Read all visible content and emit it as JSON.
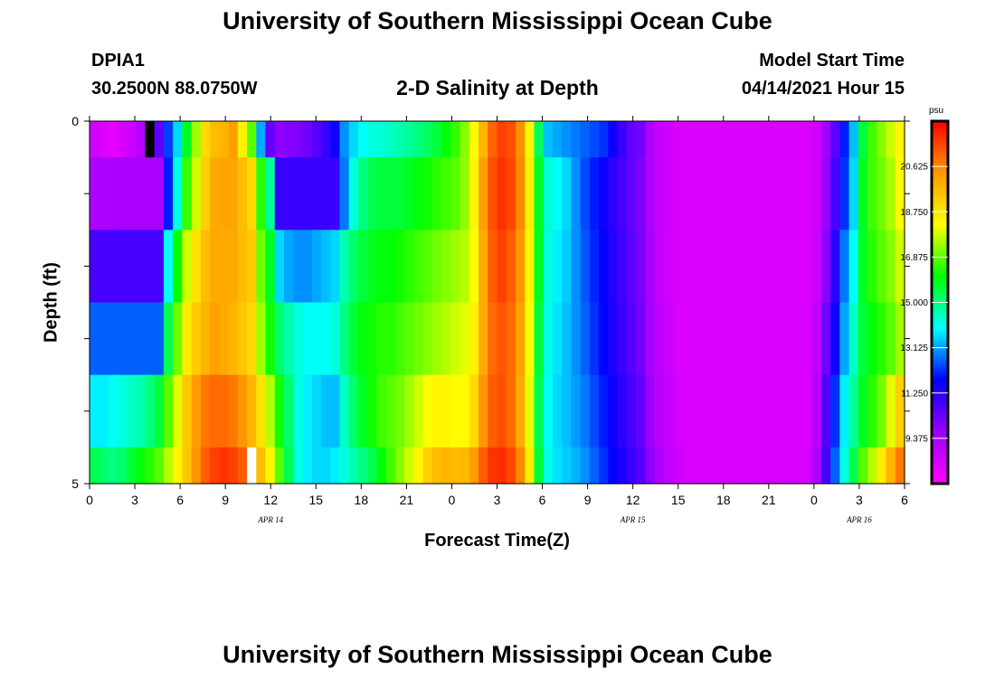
{
  "title_top": "University of Southern Mississippi Ocean Cube",
  "title_bottom": "University of Southern Mississippi Ocean Cube",
  "station": {
    "id": "DPIA1",
    "coords": "30.2500N  88.0750W"
  },
  "model": {
    "label": "Model Start Time",
    "time": "04/14/2021 Hour 15"
  },
  "chart_data": {
    "type": "heatmap",
    "title": "2-D Salinity at Depth",
    "xlabel": "Forecast Time(Z)",
    "ylabel": "Depth (ft)",
    "x_range_hours": [
      0,
      54
    ],
    "y_range_ft": [
      0,
      5
    ],
    "xtick_labels": [
      "0",
      "3",
      "6",
      "9",
      "12",
      "15",
      "18",
      "21",
      "0",
      "3",
      "6",
      "9",
      "12",
      "15",
      "18",
      "21",
      "0",
      "3",
      "6"
    ],
    "ytick_labels": [
      "0",
      "5"
    ],
    "date_labels": [
      {
        "text": "APR 14",
        "hour": 12
      },
      {
        "text": "APR 15",
        "hour": 36
      },
      {
        "text": "APR 16",
        "hour": 51
      }
    ],
    "colorbar": {
      "unit": "psu",
      "min": 7.5,
      "max": 22.5,
      "ticks": [
        "20.625",
        "18.750",
        "16.875",
        "15.000",
        "13.125",
        "11.250",
        "9.375"
      ],
      "tick_values": [
        20.625,
        18.75,
        16.875,
        15.0,
        13.125,
        11.25,
        9.375
      ],
      "colors": [
        "#ff00ff",
        "#9900ff",
        "#0000ff",
        "#00ffff",
        "#00ff00",
        "#ffff00",
        "#ff9900",
        "#ff0000"
      ]
    },
    "layer_depths_ft": [
      "0.0-0.5",
      "0.5-1.5",
      "1.5-2.5",
      "2.5-3.5",
      "3.5-4.5",
      "4.5-5.0"
    ],
    "series": [
      {
        "name": "layer_0.0-0.5ft",
        "values": [
          8.5,
          8.2,
          8.0,
          8.3,
          8.6,
          9.0,
          9.6,
          10.5,
          12.3,
          13.6,
          15.8,
          17.4,
          19.0,
          19.6,
          19.8,
          20.2,
          18.5,
          16.8,
          13.2,
          10.4,
          9.8,
          9.9,
          10.0,
          10.2,
          10.6,
          11.0,
          11.6,
          13.0,
          13.6,
          14.0,
          14.2,
          14.3,
          14.4,
          14.6,
          14.8,
          15.0,
          15.3,
          15.6,
          16.0,
          16.5,
          17.2,
          18.3,
          19.8,
          21.1,
          21.6,
          21.4,
          20.5,
          18.4,
          15.3,
          13.4,
          13.2,
          13.0,
          12.8,
          12.6,
          12.4,
          12.2,
          11.6,
          11.0,
          10.4,
          10.2,
          9.2,
          8.7,
          8.5,
          8.3,
          8.3,
          8.3,
          8.3,
          8.3,
          8.3,
          8.3,
          8.3,
          8.3,
          8.3,
          8.3,
          8.3,
          8.3,
          8.3,
          8.3,
          8.5,
          9.4,
          10.5,
          12.0,
          13.4,
          15.6,
          16.6,
          17.2,
          17.8,
          18.4
        ]
      },
      {
        "name": "layer_0.5-1.5ft",
        "values": [
          9.2,
          9.2,
          9.3,
          9.3,
          9.3,
          9.3,
          9.3,
          9.3,
          12.0,
          14.2,
          16.5,
          17.8,
          19.2,
          20.0,
          20.1,
          20.1,
          19.6,
          19.0,
          16.4,
          14.8,
          11.0,
          11.0,
          11.0,
          11.0,
          11.0,
          11.0,
          11.0,
          12.8,
          14.2,
          15.0,
          15.4,
          15.6,
          15.6,
          15.6,
          15.8,
          16.0,
          16.2,
          16.4,
          16.6,
          16.8,
          17.3,
          18.4,
          20.2,
          21.4,
          21.8,
          21.5,
          20.6,
          18.6,
          15.8,
          14.3,
          14.0,
          13.6,
          13.0,
          12.4,
          12.0,
          11.6,
          11.2,
          10.8,
          10.4,
          10.0,
          9.2,
          8.7,
          8.5,
          8.3,
          8.3,
          8.3,
          8.3,
          8.3,
          8.3,
          8.3,
          8.3,
          8.3,
          8.3,
          8.3,
          8.3,
          8.3,
          8.3,
          8.3,
          8.5,
          9.6,
          10.8,
          12.2,
          13.6,
          15.8,
          16.6,
          17.0,
          17.5,
          18.2
        ]
      },
      {
        "name": "layer_1.5-2.5ft",
        "values": [
          10.8,
          10.8,
          10.8,
          10.8,
          10.8,
          10.8,
          10.8,
          10.8,
          14.0,
          16.0,
          17.8,
          18.8,
          19.6,
          20.0,
          20.0,
          20.0,
          19.6,
          19.3,
          17.0,
          15.8,
          13.6,
          13.2,
          13.0,
          13.0,
          13.2,
          13.4,
          13.6,
          14.6,
          15.2,
          15.6,
          15.8,
          16.0,
          16.0,
          16.2,
          16.4,
          16.6,
          16.8,
          17.0,
          17.2,
          17.4,
          17.6,
          18.2,
          20.0,
          21.2,
          21.6,
          21.2,
          20.4,
          18.4,
          15.8,
          14.2,
          13.8,
          13.5,
          13.0,
          12.5,
          12.1,
          11.7,
          11.3,
          10.9,
          10.5,
          10.1,
          9.3,
          8.8,
          8.5,
          8.3,
          8.3,
          8.3,
          8.3,
          8.3,
          8.3,
          8.3,
          8.3,
          8.3,
          8.3,
          8.3,
          8.3,
          8.3,
          8.3,
          8.3,
          8.6,
          9.8,
          11.2,
          12.8,
          14.0,
          15.8,
          16.4,
          16.8,
          17.2,
          17.8
        ]
      },
      {
        "name": "layer_2.5-3.5ft",
        "values": [
          12.6,
          12.6,
          12.6,
          12.6,
          12.6,
          12.6,
          12.6,
          12.6,
          15.4,
          17.0,
          18.6,
          19.3,
          19.8,
          20.2,
          20.0,
          19.8,
          19.4,
          19.0,
          17.4,
          16.2,
          15.2,
          14.6,
          14.2,
          14.0,
          14.0,
          14.0,
          14.2,
          15.0,
          15.6,
          16.0,
          16.2,
          16.4,
          16.4,
          16.6,
          16.8,
          17.0,
          17.2,
          17.4,
          17.6,
          17.8,
          18.0,
          18.5,
          20.0,
          21.0,
          21.3,
          21.0,
          20.2,
          18.2,
          15.6,
          14.1,
          13.7,
          13.4,
          13.0,
          12.6,
          12.2,
          11.8,
          11.4,
          11.0,
          10.6,
          10.2,
          9.4,
          8.9,
          8.6,
          8.3,
          8.3,
          8.3,
          8.3,
          8.3,
          8.3,
          8.3,
          8.3,
          8.3,
          8.3,
          8.3,
          8.3,
          8.3,
          8.3,
          8.3,
          8.8,
          10.2,
          11.6,
          13.2,
          14.4,
          15.6,
          16.0,
          16.4,
          16.8,
          17.4
        ]
      },
      {
        "name": "layer_3.5-4.5ft",
        "values": [
          13.8,
          13.8,
          14.0,
          14.2,
          14.4,
          14.6,
          15.0,
          15.6,
          16.8,
          18.0,
          19.4,
          20.3,
          20.8,
          21.0,
          21.0,
          20.8,
          20.4,
          19.8,
          18.8,
          17.6,
          16.2,
          15.2,
          14.2,
          13.8,
          13.6,
          13.4,
          13.4,
          14.4,
          15.2,
          15.8,
          16.2,
          16.6,
          16.8,
          17.0,
          17.4,
          17.8,
          18.2,
          18.4,
          18.4,
          18.2,
          18.3,
          19.0,
          20.4,
          21.2,
          21.4,
          21.0,
          20.0,
          18.0,
          15.4,
          14.0,
          13.6,
          13.4,
          13.1,
          12.8,
          12.4,
          12.0,
          11.6,
          11.2,
          10.8,
          10.4,
          9.6,
          9.0,
          8.7,
          8.4,
          8.3,
          8.3,
          8.3,
          8.3,
          8.3,
          8.3,
          8.3,
          8.3,
          8.3,
          8.3,
          8.3,
          8.3,
          8.3,
          8.3,
          9.0,
          10.6,
          12.2,
          13.8,
          14.8,
          15.8,
          16.4,
          17.0,
          18.0,
          19.2
        ]
      },
      {
        "name": "layer_4.5-5.0ft",
        "values": [
          15.4,
          15.2,
          15.0,
          15.2,
          15.6,
          16.0,
          16.4,
          16.8,
          17.6,
          18.4,
          19.4,
          20.4,
          21.2,
          21.6,
          21.8,
          21.6,
          21.2,
          20.6,
          19.6,
          18.4,
          16.8,
          15.4,
          14.2,
          13.8,
          13.6,
          13.6,
          13.8,
          14.2,
          14.6,
          15.0,
          15.4,
          16.0,
          16.6,
          17.2,
          17.8,
          18.4,
          19.2,
          19.6,
          19.8,
          19.6,
          19.7,
          20.3,
          21.2,
          21.8,
          21.9,
          21.5,
          20.6,
          18.6,
          15.6,
          14.1,
          13.7,
          13.5,
          13.3,
          13.0,
          12.6,
          12.2,
          11.8,
          11.4,
          11.0,
          10.6,
          9.8,
          9.2,
          8.8,
          8.5,
          8.3,
          8.3,
          8.3,
          8.3,
          8.3,
          8.3,
          8.3,
          8.3,
          8.3,
          8.3,
          8.3,
          8.3,
          8.3,
          8.3,
          9.2,
          10.8,
          12.6,
          14.2,
          15.4,
          16.8,
          17.6,
          18.6,
          19.8,
          20.8
        ]
      }
    ],
    "missing_cells": [
      {
        "layer": 0,
        "column": 6,
        "color": "#000000"
      },
      {
        "layer": 5,
        "column": 17,
        "color": "#ffffff"
      }
    ]
  }
}
